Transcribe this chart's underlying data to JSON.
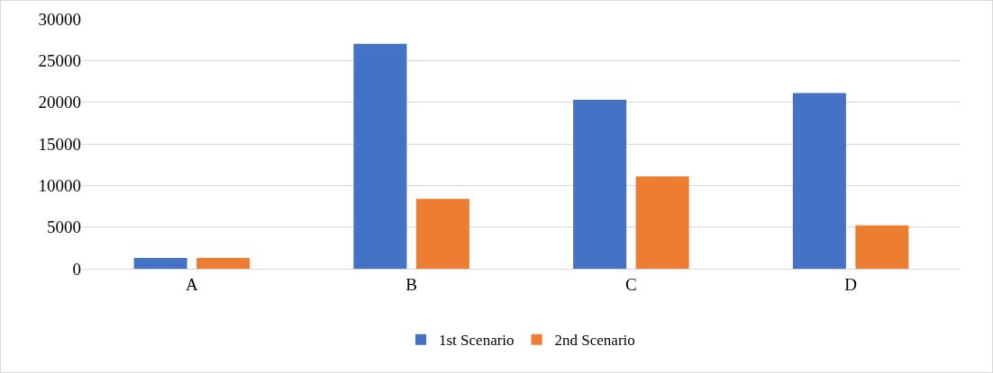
{
  "chart_data": {
    "type": "bar",
    "categories": [
      "A",
      "B",
      "C",
      "D"
    ],
    "series": [
      {
        "name": "1st Scenario",
        "color": "#4472c4",
        "values": [
          1300,
          27000,
          20300,
          21100
        ]
      },
      {
        "name": "2nd Scenario",
        "color": "#ed7d31",
        "values": [
          1300,
          8400,
          11100,
          5200
        ]
      }
    ],
    "ylim": [
      0,
      30000
    ],
    "yticks": [
      0,
      5000,
      10000,
      15000,
      20000,
      25000,
      30000
    ],
    "grid": "y",
    "legend": "bottom"
  }
}
